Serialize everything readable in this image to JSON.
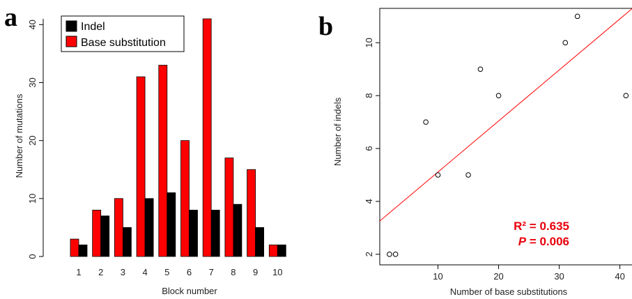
{
  "panels": {
    "a": "a",
    "b": "b"
  },
  "chart_data": [
    {
      "type": "bar",
      "categories": [
        "1",
        "2",
        "3",
        "4",
        "5",
        "6",
        "7",
        "8",
        "9",
        "10"
      ],
      "series": [
        {
          "name": "Base substitution",
          "values": [
            3,
            8,
            10,
            31,
            33,
            20,
            41,
            17,
            15,
            2
          ]
        },
        {
          "name": "Indel",
          "values": [
            2,
            7,
            5,
            10,
            11,
            8,
            8,
            9,
            5,
            2
          ]
        }
      ],
      "xlabel": "Block number",
      "ylabel": "Number of mutations",
      "ylim": [
        0,
        41
      ],
      "yticks": [
        0,
        10,
        20,
        30,
        40
      ],
      "legend": {
        "placement": "top-left",
        "entries": [
          "Indel",
          "Base substitution"
        ]
      },
      "colors": {
        "Base substitution": "#ff0000",
        "Indel": "#000000"
      }
    },
    {
      "type": "scatter",
      "x": [
        2,
        3,
        8,
        10,
        15,
        17,
        20,
        31,
        33,
        41
      ],
      "y": [
        2,
        2,
        7,
        5,
        5,
        9,
        8,
        10,
        11,
        8
      ],
      "xlabel": "Number of base substitutions",
      "ylabel": "Number of indels",
      "xlim": [
        0.4,
        42
      ],
      "ylim": [
        1.6,
        11.3
      ],
      "xticks": [
        10,
        20,
        30,
        40
      ],
      "yticks": [
        2,
        4,
        6,
        8,
        10
      ],
      "fit_line": {
        "intercept": 3.18,
        "slope": 0.193,
        "color": "#ff0000"
      },
      "annotations": {
        "r2": "R² = 0.635",
        "p_label": "P",
        "p_value": " = 0.006"
      }
    }
  ]
}
